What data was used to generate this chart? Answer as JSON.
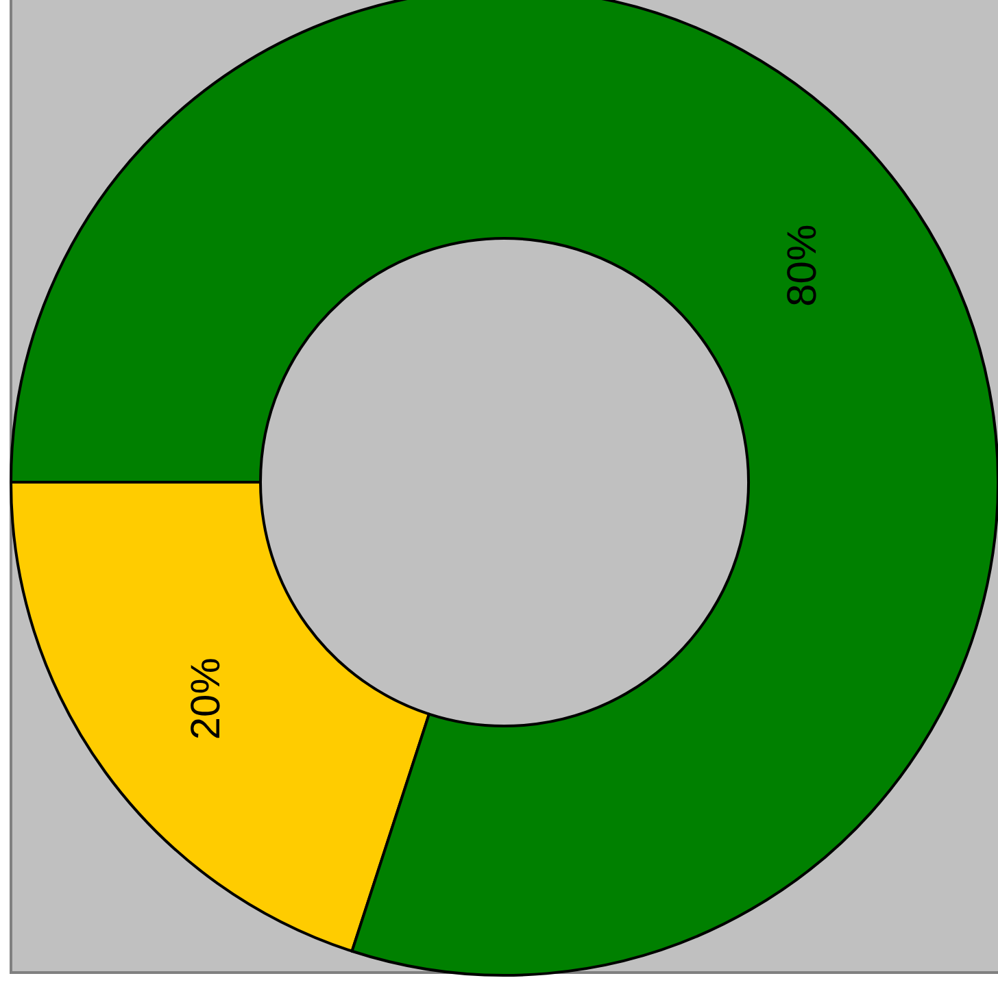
{
  "chart_data": {
    "type": "donut",
    "categories": [
      null,
      null
    ],
    "values": [
      20,
      80
    ],
    "colors": [
      "#ffcc00",
      "#008000"
    ],
    "value_labels": [
      "20%",
      "80%"
    ]
  }
}
